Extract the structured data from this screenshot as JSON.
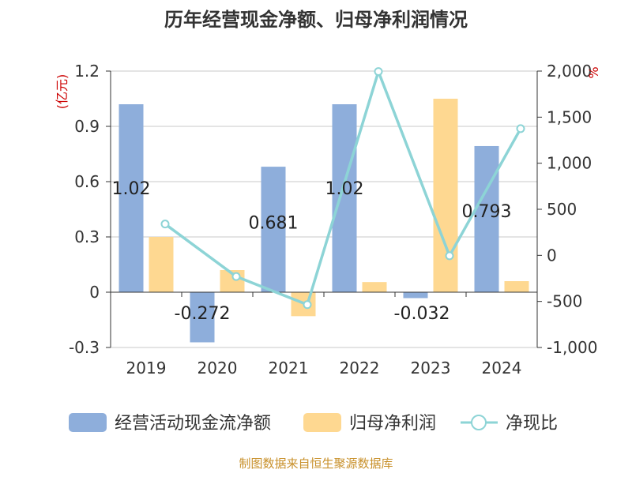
{
  "chart_data": {
    "type": "bar+line",
    "title": "历年经营现金净额、归母净利润情况",
    "categories": [
      "2019",
      "2020",
      "2021",
      "2022",
      "2023",
      "2024"
    ],
    "series": [
      {
        "name": "经营活动现金流净额",
        "type": "bar",
        "axis": "left",
        "color": "#8eaedb",
        "values": [
          1.02,
          -0.272,
          0.681,
          1.02,
          -0.032,
          0.793
        ],
        "labels": [
          "1.02",
          "-0.272",
          "0.681",
          "1.02",
          "-0.032",
          "0.793"
        ]
      },
      {
        "name": "归母净利润",
        "type": "bar",
        "axis": "left",
        "color": "#fed891",
        "values": [
          0.3,
          0.12,
          -0.13,
          0.055,
          1.05,
          0.06
        ]
      },
      {
        "name": "净现比",
        "type": "line",
        "axis": "right",
        "color": "#8dd4d6",
        "values": [
          340,
          -230,
          -535,
          1995,
          -5,
          1375
        ]
      }
    ],
    "left_axis": {
      "label": "(亿元)",
      "ticks": [
        "-0.3",
        "0",
        "0.3",
        "0.6",
        "0.9",
        "1.2"
      ],
      "tick_values": [
        -0.3,
        0,
        0.3,
        0.6,
        0.9,
        1.2
      ],
      "ylim": [
        -0.3,
        1.2
      ]
    },
    "right_axis": {
      "label": "%",
      "ticks": [
        "-1,000",
        "-500",
        "0",
        "500",
        "1,000",
        "1,500",
        "2,000"
      ],
      "tick_values": [
        -1000,
        -500,
        0,
        500,
        1000,
        1500,
        2000
      ],
      "ylim": [
        -1000,
        2000
      ]
    },
    "legend_position": "bottom",
    "source": "制图数据来自恒生聚源数据库"
  }
}
